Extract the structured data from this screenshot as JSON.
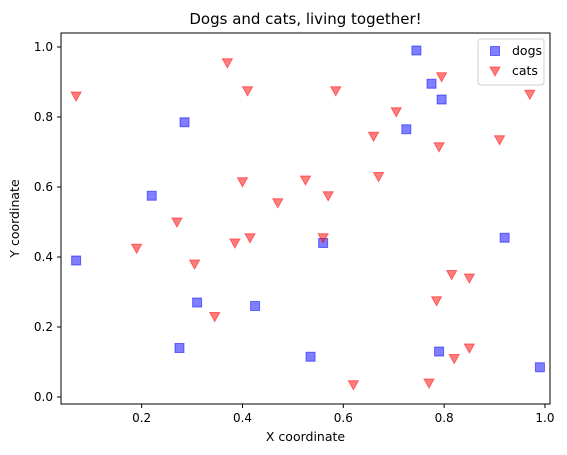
{
  "chart_data": {
    "type": "scatter",
    "title": "Dogs and cats, living together!",
    "xlabel": "X coordinate",
    "ylabel": "Y coordinate",
    "xlim": [
      0.04,
      1.01
    ],
    "ylim": [
      -0.02,
      1.04
    ],
    "xticks": [
      0.2,
      0.4,
      0.6,
      0.8,
      1.0
    ],
    "yticks": [
      0.0,
      0.2,
      0.4,
      0.6,
      0.8,
      1.0
    ],
    "xtick_labels": [
      "0.2",
      "0.4",
      "0.6",
      "0.8",
      "1.0"
    ],
    "ytick_labels": [
      "0.0",
      "0.2",
      "0.4",
      "0.6",
      "0.8",
      "1.0"
    ],
    "grid": false,
    "legend_position": "top-right",
    "series": [
      {
        "name": "dogs",
        "marker": "square",
        "color": "#0000ff",
        "alpha": 0.5,
        "points": [
          [
            0.07,
            0.39
          ],
          [
            0.22,
            0.575
          ],
          [
            0.285,
            0.785
          ],
          [
            0.275,
            0.14
          ],
          [
            0.31,
            0.27
          ],
          [
            0.425,
            0.26
          ],
          [
            0.535,
            0.115
          ],
          [
            0.56,
            0.44
          ],
          [
            0.725,
            0.765
          ],
          [
            0.745,
            0.99
          ],
          [
            0.775,
            0.895
          ],
          [
            0.795,
            0.85
          ],
          [
            0.79,
            0.13
          ],
          [
            0.92,
            0.455
          ],
          [
            0.99,
            0.085
          ]
        ]
      },
      {
        "name": "cats",
        "marker": "triangle-down",
        "color": "#ff0000",
        "alpha": 0.5,
        "points": [
          [
            0.07,
            0.86
          ],
          [
            0.19,
            0.425
          ],
          [
            0.27,
            0.5
          ],
          [
            0.305,
            0.38
          ],
          [
            0.345,
            0.23
          ],
          [
            0.37,
            0.955
          ],
          [
            0.385,
            0.44
          ],
          [
            0.4,
            0.615
          ],
          [
            0.41,
            0.875
          ],
          [
            0.415,
            0.455
          ],
          [
            0.47,
            0.555
          ],
          [
            0.525,
            0.62
          ],
          [
            0.56,
            0.455
          ],
          [
            0.57,
            0.575
          ],
          [
            0.585,
            0.875
          ],
          [
            0.62,
            0.035
          ],
          [
            0.66,
            0.745
          ],
          [
            0.67,
            0.63
          ],
          [
            0.705,
            0.815
          ],
          [
            0.77,
            0.04
          ],
          [
            0.785,
            0.275
          ],
          [
            0.795,
            0.915
          ],
          [
            0.79,
            0.715
          ],
          [
            0.815,
            0.35
          ],
          [
            0.82,
            0.11
          ],
          [
            0.85,
            0.34
          ],
          [
            0.85,
            0.14
          ],
          [
            0.91,
            0.735
          ],
          [
            0.97,
            0.865
          ]
        ]
      }
    ]
  }
}
